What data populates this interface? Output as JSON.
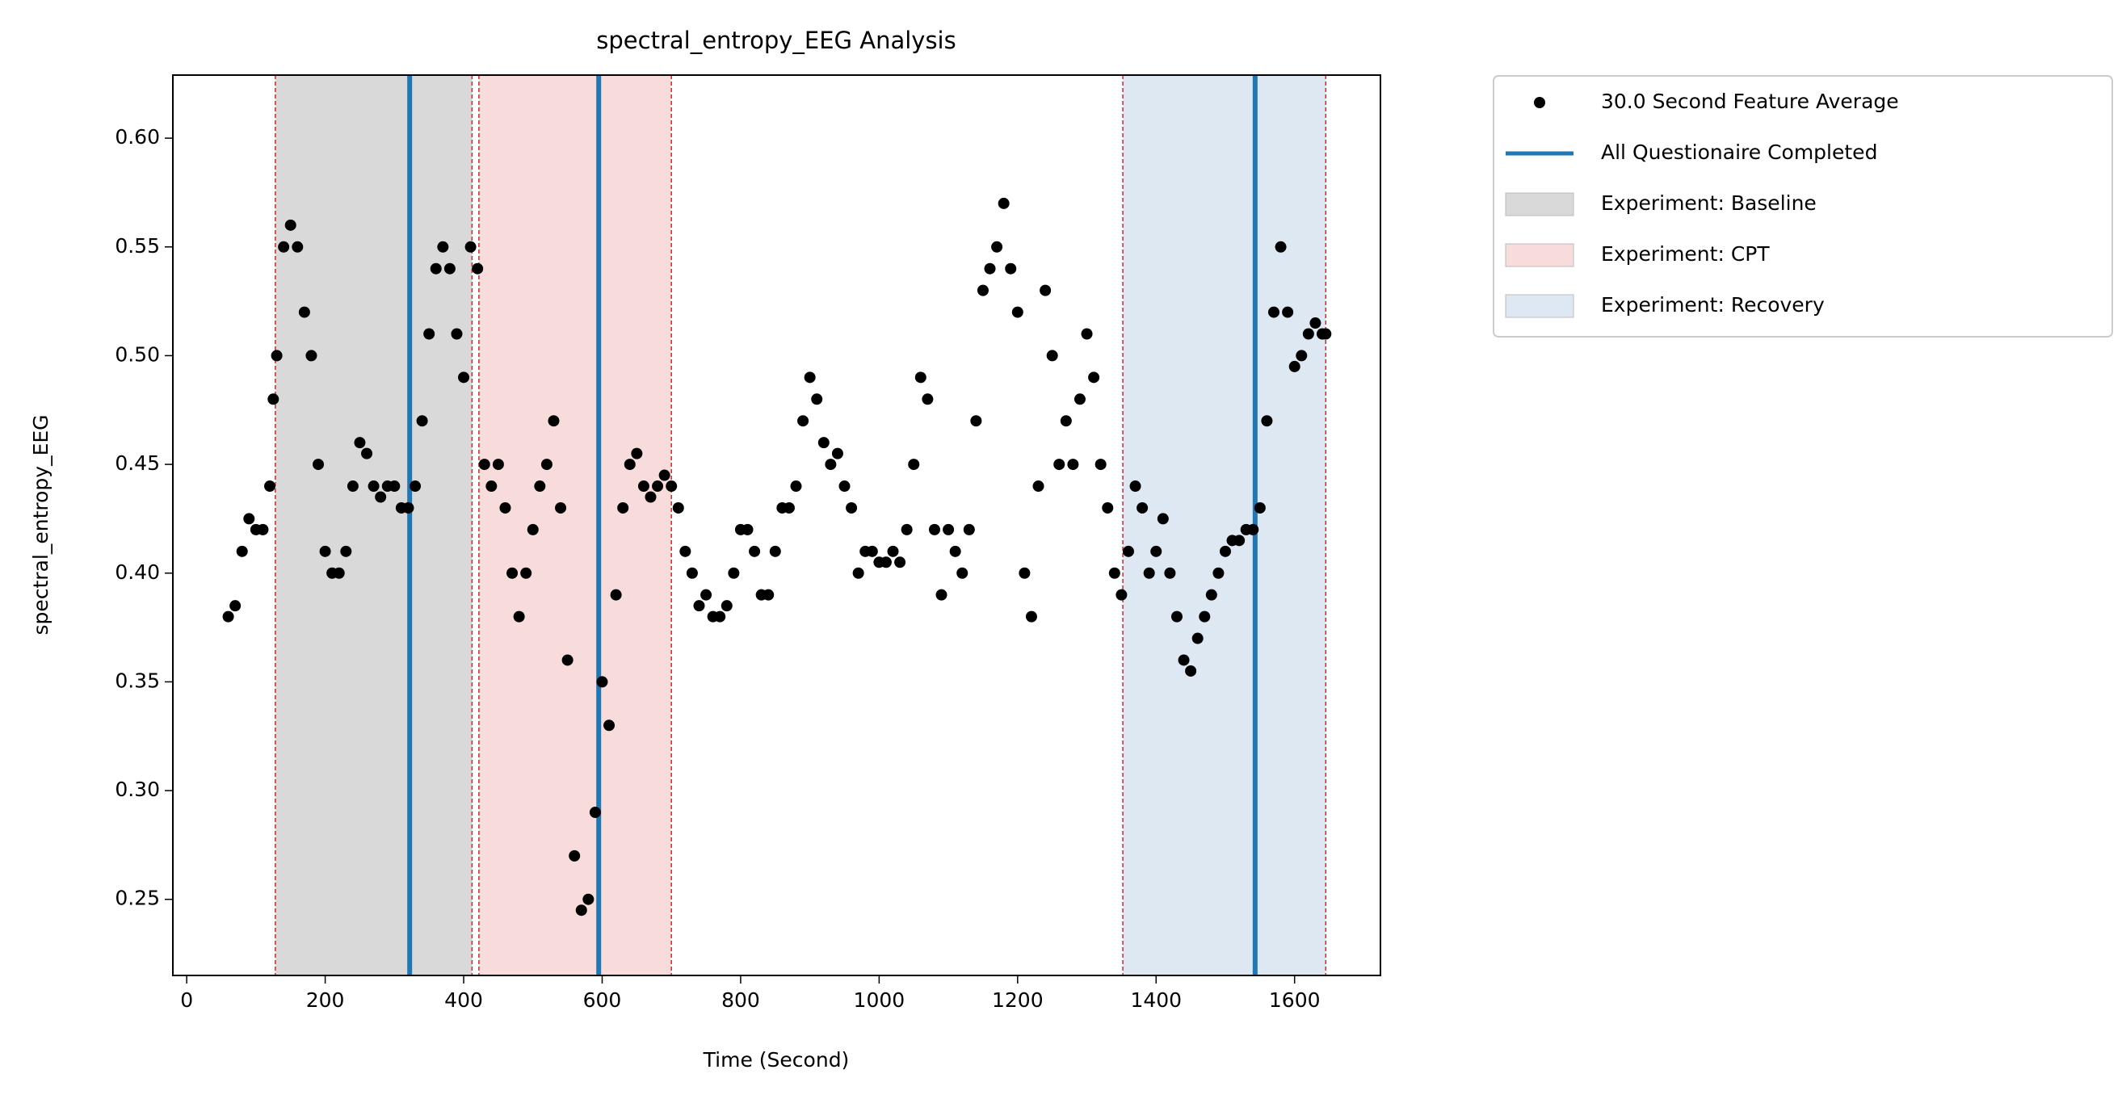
{
  "chart_data": {
    "type": "scatter",
    "title": "spectral_entropy_EEG Analysis",
    "xlabel": "Time (Second)",
    "ylabel": "spectral_entropy_EEG",
    "xlim": [
      -20,
      1724
    ],
    "ylim": [
      0.215,
      0.629
    ],
    "xticks": [
      0,
      200,
      400,
      600,
      800,
      1000,
      1200,
      1400,
      1600
    ],
    "yticks": [
      0.25,
      {
        "value": 0.3,
        "label": "0.30"
      },
      0.35,
      {
        "value": 0.4,
        "label": "0.40"
      },
      0.45,
      {
        "value": 0.5,
        "label": "0.50"
      },
      0.55,
      {
        "value": 0.6,
        "label": "0.60"
      }
    ],
    "grid": false,
    "legend": "outside upper right",
    "series": [
      {
        "name": "30.0 Second Feature Average",
        "color": "#000000",
        "x": [
          60,
          70,
          80,
          90,
          100,
          110,
          120,
          125,
          130,
          140,
          150,
          160,
          170,
          180,
          190,
          200,
          210,
          220,
          230,
          240,
          250,
          260,
          270,
          280,
          290,
          300,
          310,
          320,
          330,
          340,
          350,
          360,
          370,
          380,
          390,
          400,
          410,
          420,
          430,
          440,
          450,
          460,
          470,
          480,
          490,
          500,
          510,
          520,
          530,
          540,
          550,
          560,
          570,
          580,
          590,
          600,
          610,
          620,
          630,
          640,
          650,
          660,
          670,
          680,
          690,
          700,
          710,
          720,
          730,
          740,
          750,
          760,
          770,
          780,
          790,
          800,
          810,
          820,
          830,
          840,
          850,
          860,
          870,
          880,
          890,
          900,
          910,
          920,
          930,
          940,
          950,
          960,
          970,
          980,
          990,
          1000,
          1010,
          1020,
          1030,
          1040,
          1050,
          1060,
          1070,
          1080,
          1090,
          1100,
          1110,
          1120,
          1130,
          1140,
          1150,
          1160,
          1170,
          1180,
          1190,
          1200,
          1210,
          1220,
          1230,
          1240,
          1250,
          1260,
          1270,
          1280,
          1290,
          1300,
          1310,
          1320,
          1330,
          1340,
          1350,
          1360,
          1370,
          1380,
          1390,
          1400,
          1410,
          1420,
          1430,
          1440,
          1450,
          1460,
          1470,
          1480,
          1490,
          1500,
          1510,
          1520,
          1530,
          1540,
          1550,
          1560,
          1570,
          1580,
          1590,
          1600,
          1610,
          1620,
          1630,
          1640,
          1645
        ],
        "values": [
          0.38,
          0.385,
          0.41,
          0.425,
          0.42,
          0.42,
          0.44,
          0.48,
          0.5,
          0.55,
          0.56,
          0.55,
          0.52,
          0.5,
          0.45,
          0.41,
          0.4,
          0.4,
          0.41,
          0.44,
          0.46,
          0.455,
          0.44,
          0.435,
          0.44,
          0.44,
          0.43,
          0.43,
          0.44,
          0.47,
          0.51,
          0.54,
          0.55,
          0.54,
          0.51,
          0.49,
          0.55,
          0.54,
          0.45,
          0.44,
          0.45,
          0.43,
          0.4,
          0.38,
          0.4,
          0.42,
          0.44,
          0.45,
          0.47,
          0.43,
          0.36,
          0.27,
          0.245,
          0.25,
          0.29,
          0.35,
          0.33,
          0.39,
          0.43,
          0.45,
          0.455,
          0.44,
          0.435,
          0.44,
          0.445,
          0.44,
          0.43,
          0.41,
          0.4,
          0.385,
          0.39,
          0.38,
          0.38,
          0.385,
          0.4,
          0.42,
          0.42,
          0.41,
          0.39,
          0.39,
          0.41,
          0.43,
          0.43,
          0.44,
          0.47,
          0.49,
          0.48,
          0.46,
          0.45,
          0.455,
          0.44,
          0.43,
          0.4,
          0.41,
          0.41,
          0.405,
          0.405,
          0.41,
          0.405,
          0.42,
          0.45,
          0.49,
          0.48,
          0.42,
          0.39,
          0.42,
          0.41,
          0.4,
          0.42,
          0.47,
          0.53,
          0.54,
          0.55,
          0.57,
          0.54,
          0.52,
          0.4,
          0.38,
          0.44,
          0.53,
          0.5,
          0.45,
          0.47,
          0.45,
          0.48,
          0.51,
          0.49,
          0.45,
          0.43,
          0.4,
          0.39,
          0.41,
          0.44,
          0.43,
          0.4,
          0.41,
          0.425,
          0.4,
          0.38,
          0.36,
          0.355,
          0.37,
          0.38,
          0.39,
          0.4,
          0.41,
          0.415,
          0.415,
          0.42,
          0.42,
          0.43,
          0.47,
          0.52,
          0.55,
          0.52,
          0.495,
          0.5,
          0.51,
          0.515,
          0.51,
          0.51
        ]
      }
    ],
    "vlines": {
      "name": "All Questionaire Completed",
      "color": "#1f77b4",
      "values": [
        322,
        595,
        1543
      ]
    },
    "spans": [
      {
        "name": "Experiment: Baseline",
        "color": "#d9d9d9",
        "start": 128,
        "end": 412
      },
      {
        "name": "Experiment: CPT",
        "color": "#f8dcdc",
        "start": 422,
        "end": 700
      },
      {
        "name": "Experiment: Recovery",
        "color": "#dde8f3",
        "start": 1352,
        "end": 1645
      }
    ],
    "span_edge_color": "#d62728"
  }
}
